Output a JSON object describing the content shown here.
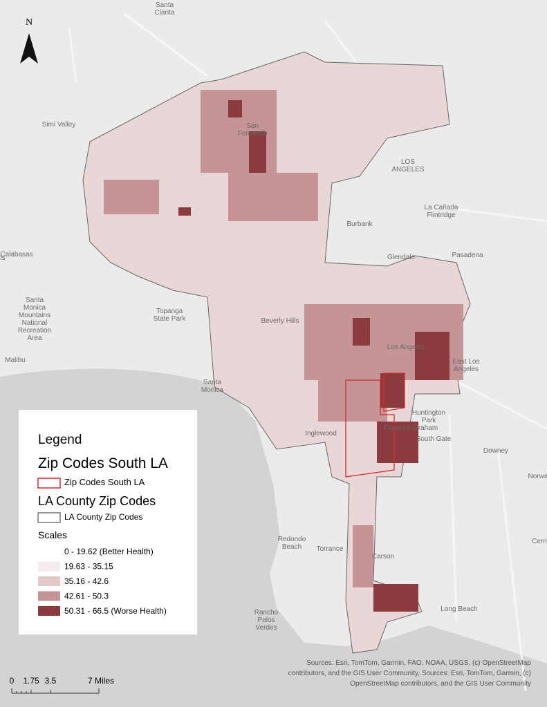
{
  "north_arrow": "N",
  "places": [
    [
      "Santa",
      "Clarita"
    ],
    [
      "Simi Valley"
    ],
    [
      "San",
      "Fernando"
    ],
    [
      "LOS",
      "ANGELES"
    ],
    [
      "La Cañada",
      "Flintridge"
    ],
    [
      "Burbank"
    ],
    [
      "Glendale"
    ],
    [
      "Pasadena"
    ],
    [
      "Calabasas"
    ],
    [
      "Santa",
      "Monica",
      "Mountains",
      "National",
      "Recreation",
      "Area"
    ],
    [
      "Topanga",
      "State Park"
    ],
    [
      "Beverly Hills"
    ],
    [
      "Los Angeles"
    ],
    [
      "Malibu"
    ],
    [
      "East Los",
      "Angeles"
    ],
    [
      "Santa",
      "Monica"
    ],
    [
      "Huntington",
      "Park"
    ],
    [
      "Inglewood"
    ],
    [
      "Florence-Graham"
    ],
    [
      "South Gate"
    ],
    [
      "Downey"
    ],
    [
      "Norwa"
    ],
    [
      "Cerri"
    ],
    [
      "Redondo",
      "Beach"
    ],
    [
      "Torrance"
    ],
    [
      "Carson"
    ],
    [
      "Long Beach"
    ],
    [
      "Rancho",
      "Palos",
      "Verdes"
    ],
    [
      "ls"
    ]
  ],
  "legend": {
    "title": "Legend",
    "layer1_title": "Zip Codes South LA",
    "layer1_item": "Zip Codes South LA",
    "layer1_color": "#d42a2a",
    "layer2_title": "LA County Zip Codes",
    "layer2_item": "LA County Zip Codes",
    "layer2_color": "#777777",
    "scales_title": "Scales",
    "classes": [
      {
        "label": "0 - 19.62 (Better Health)",
        "color": "#ffffff"
      },
      {
        "label": "19.63 - 35.15",
        "color": "#f6eced"
      },
      {
        "label": "35.16 - 42.6",
        "color": "#e3c8ca"
      },
      {
        "label": "42.61 - 50.3",
        "color": "#c59497"
      },
      {
        "label": "50.31 - 66.5 (Worse Health)",
        "color": "#8b3a3e"
      }
    ]
  },
  "scale_bar": [
    "0",
    "1.75",
    "3.5",
    "7 Miles"
  ],
  "attribution": [
    "Sources:  Esri, TomTom, Garmin, FAO, NOAA, USGS, (c) OpenStreetMap",
    "contributors, and the GIS User Community, Sources:  Esri, TomTom, Garmin, (c)",
    "OpenStreetMap contributors, and the GIS User Community"
  ]
}
